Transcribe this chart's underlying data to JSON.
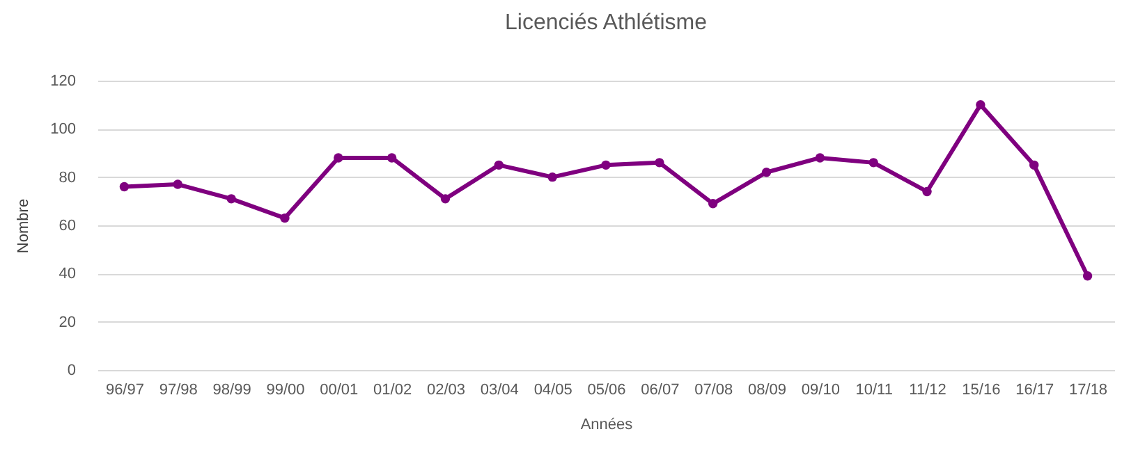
{
  "chart_data": {
    "type": "line",
    "title": "Licenciés Athlétisme",
    "xlabel": "Années",
    "ylabel": "Nombre",
    "categories": [
      "96/97",
      "97/98",
      "98/99",
      "99/00",
      "00/01",
      "01/02",
      "02/03",
      "03/04",
      "04/05",
      "05/06",
      "06/07",
      "07/08",
      "08/09",
      "09/10",
      "10/11",
      "11/12",
      "15/16",
      "16/17",
      "17/18"
    ],
    "series": [
      {
        "color": "#7f007f",
        "values": [
          76,
          77,
          71,
          63,
          88,
          88,
          71,
          85,
          80,
          85,
          86,
          69,
          82,
          88,
          86,
          74,
          110,
          85,
          39
        ]
      }
    ],
    "ylim": [
      0,
      120
    ],
    "yticks": [
      0,
      20,
      40,
      60,
      80,
      100,
      120
    ],
    "grid": "y",
    "marker": "circle",
    "line_style": "solid"
  }
}
